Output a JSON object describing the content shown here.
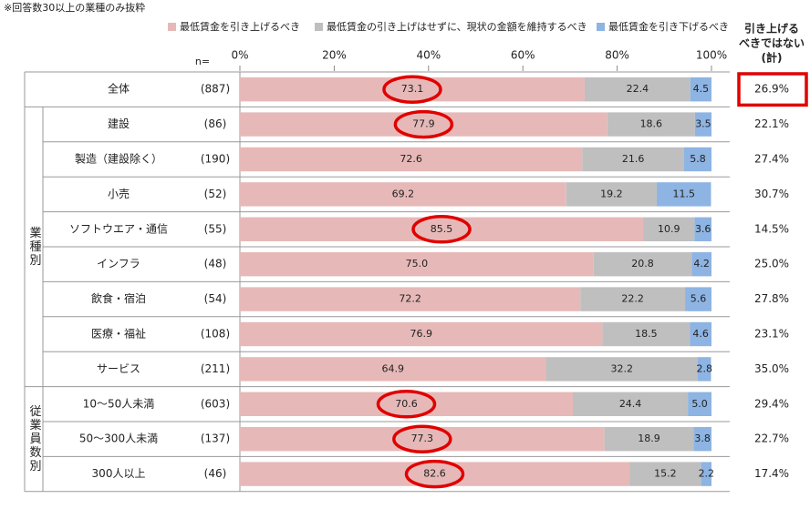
{
  "chart_data": {
    "type": "stacked-bar-table",
    "note": "※回答数30以上の業種のみ抜粋",
    "n_header": "n=",
    "side_header": [
      "引き上げる",
      "べきではない",
      "(計)"
    ],
    "categories": [
      "全体",
      "建設",
      "製造（建設除く）",
      "小売",
      "ソフトウエア・通信",
      "インフラ",
      "飲食・宿泊",
      "医療・福祉",
      "サービス",
      "10～50人未満",
      "50～300人未満",
      "300人以上"
    ],
    "n_labels": [
      "(887)",
      "(86)",
      "(190)",
      "(52)",
      "(55)",
      "(48)",
      "(54)",
      "(108)",
      "(211)",
      "(603)",
      "(137)",
      "(46)"
    ],
    "groups": [
      {
        "label": "業種別",
        "rows": [
          1,
          8
        ]
      },
      {
        "label": "従業員数別",
        "rows": [
          9,
          11
        ]
      }
    ],
    "series": [
      {
        "name": "最低賃金を引き上げるべき",
        "color": "#e6b9b8",
        "values": [
          73.1,
          77.9,
          72.6,
          69.2,
          85.5,
          75.0,
          72.2,
          76.9,
          64.9,
          70.6,
          77.3,
          82.6
        ],
        "value_labels": [
          "73.1",
          "77.9",
          "72.6",
          "69.2",
          "85.5",
          "75.0",
          "72.2",
          "76.9",
          "64.9",
          "70.6",
          "77.3",
          "82.6"
        ]
      },
      {
        "name": "最低賃金の引き上げはせずに、現状の金額を維持するべき",
        "color": "#bfbfbf",
        "values": [
          22.4,
          18.6,
          21.6,
          19.2,
          10.9,
          20.8,
          22.2,
          18.5,
          32.2,
          24.4,
          18.9,
          15.2
        ],
        "value_labels": [
          "22.4",
          "18.6",
          "21.6",
          "19.2",
          "10.9",
          "20.8",
          "22.2",
          "18.5",
          "32.2",
          "24.4",
          "18.9",
          "15.2"
        ]
      },
      {
        "name": "最低賃金を引き下げるべき",
        "color": "#8db4e2",
        "values": [
          4.5,
          3.5,
          5.8,
          11.5,
          3.6,
          4.2,
          5.6,
          4.6,
          2.8,
          5.0,
          3.8,
          2.2
        ],
        "value_labels": [
          "4.5",
          "3.5",
          "5.8",
          "11.5",
          "3.6",
          "4.2",
          "5.6",
          "4.6",
          "2.8",
          "5.0",
          "3.8",
          "2.2"
        ]
      }
    ],
    "side_values": [
      26.9,
      22.1,
      27.4,
      30.7,
      14.5,
      25.0,
      27.8,
      23.1,
      35.0,
      29.4,
      22.7,
      17.4
    ],
    "side_value_labels": [
      "26.9%",
      "22.1%",
      "27.4%",
      "30.7%",
      "14.5%",
      "25.0%",
      "27.8%",
      "23.1%",
      "35.0%",
      "29.4%",
      "22.7%",
      "17.4%"
    ],
    "circled_rows": [
      0,
      1,
      4,
      9,
      10,
      11
    ],
    "boxed_side_rows": [
      0
    ],
    "highlight_color": "#e00000",
    "xlim": [
      0,
      100
    ],
    "xticks": [
      {
        "value": 0,
        "label": "0%"
      },
      {
        "value": 20,
        "label": "20%"
      },
      {
        "value": 40,
        "label": "40%"
      },
      {
        "value": 60,
        "label": "60%"
      },
      {
        "value": 80,
        "label": "80%"
      },
      {
        "value": 100,
        "label": "100%"
      }
    ]
  }
}
